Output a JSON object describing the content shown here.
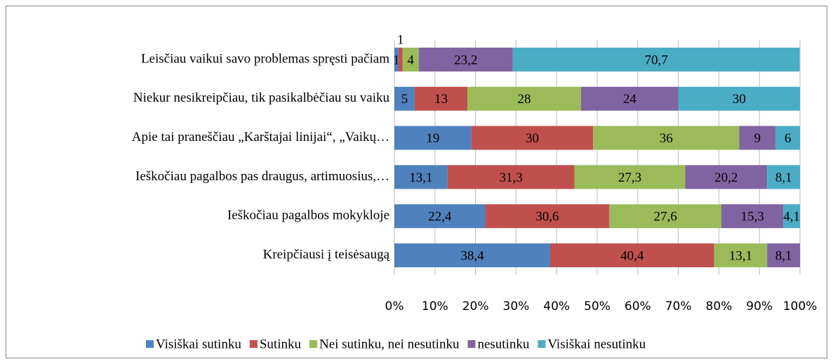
{
  "chart_data": {
    "type": "stacked_bar_horizontal",
    "categories": [
      "Leisčiau vaikui savo problemas spręsti pačiam",
      "Niekur nesikreipčiau, tik pasikalbėčiau su vaiku",
      "Apie tai praneščiau „Karštajai linijai“, „Vaikų…",
      "Ieškočiau pagalbos pas draugus, artimuosius,…",
      "Ieškočiau pagalbos mokykloje",
      "Kreipčiausi į teisėsaugą"
    ],
    "series": [
      {
        "name": "Visiškai sutinku",
        "color": "#4f81bd",
        "values": [
          1,
          5,
          19,
          13.1,
          22.4,
          38.4
        ],
        "value_labels": [
          "1",
          "5",
          "19",
          "13,1",
          "22,4",
          "38,4"
        ]
      },
      {
        "name": "Sutinku",
        "color": "#c0504d",
        "values": [
          1,
          13,
          30,
          31.3,
          30.6,
          40.4
        ],
        "value_labels": [
          "1",
          "13",
          "30",
          "31,3",
          "30,6",
          "40,4"
        ]
      },
      {
        "name": "Nei sutinku, nei nesutinku",
        "color": "#9bbb59",
        "values": [
          4,
          28,
          36,
          27.3,
          27.6,
          13.1
        ],
        "value_labels": [
          "4",
          "28",
          "36",
          "27,3",
          "27,6",
          "13,1"
        ]
      },
      {
        "name": "nesutinku",
        "color": "#8064a2",
        "values": [
          23.2,
          24,
          9,
          20.2,
          15.3,
          8.1
        ],
        "value_labels": [
          "23,2",
          "24",
          "9",
          "20,2",
          "15,3",
          "8,1"
        ]
      },
      {
        "name": "Visiškai nesutinku",
        "color": "#4bacc6",
        "values": [
          70.7,
          30,
          6,
          8.1,
          4.1,
          null
        ],
        "value_labels": [
          "70,7",
          "30",
          "6",
          "8,1",
          "4,1",
          null
        ]
      }
    ],
    "xlim": [
      0,
      100
    ],
    "xticks": [
      {
        "value": 0,
        "label": "0%"
      },
      {
        "value": 10,
        "label": "10%"
      },
      {
        "value": 20,
        "label": "20%"
      },
      {
        "value": 30,
        "label": "30%"
      },
      {
        "value": 40,
        "label": "40%"
      },
      {
        "value": 50,
        "label": "50%"
      },
      {
        "value": 60,
        "label": "60%"
      },
      {
        "value": 70,
        "label": "70%"
      },
      {
        "value": 80,
        "label": "80%"
      },
      {
        "value": 90,
        "label": "90%"
      },
      {
        "value": 100,
        "label": "100%"
      }
    ],
    "grid": true,
    "legend": "bottom"
  }
}
